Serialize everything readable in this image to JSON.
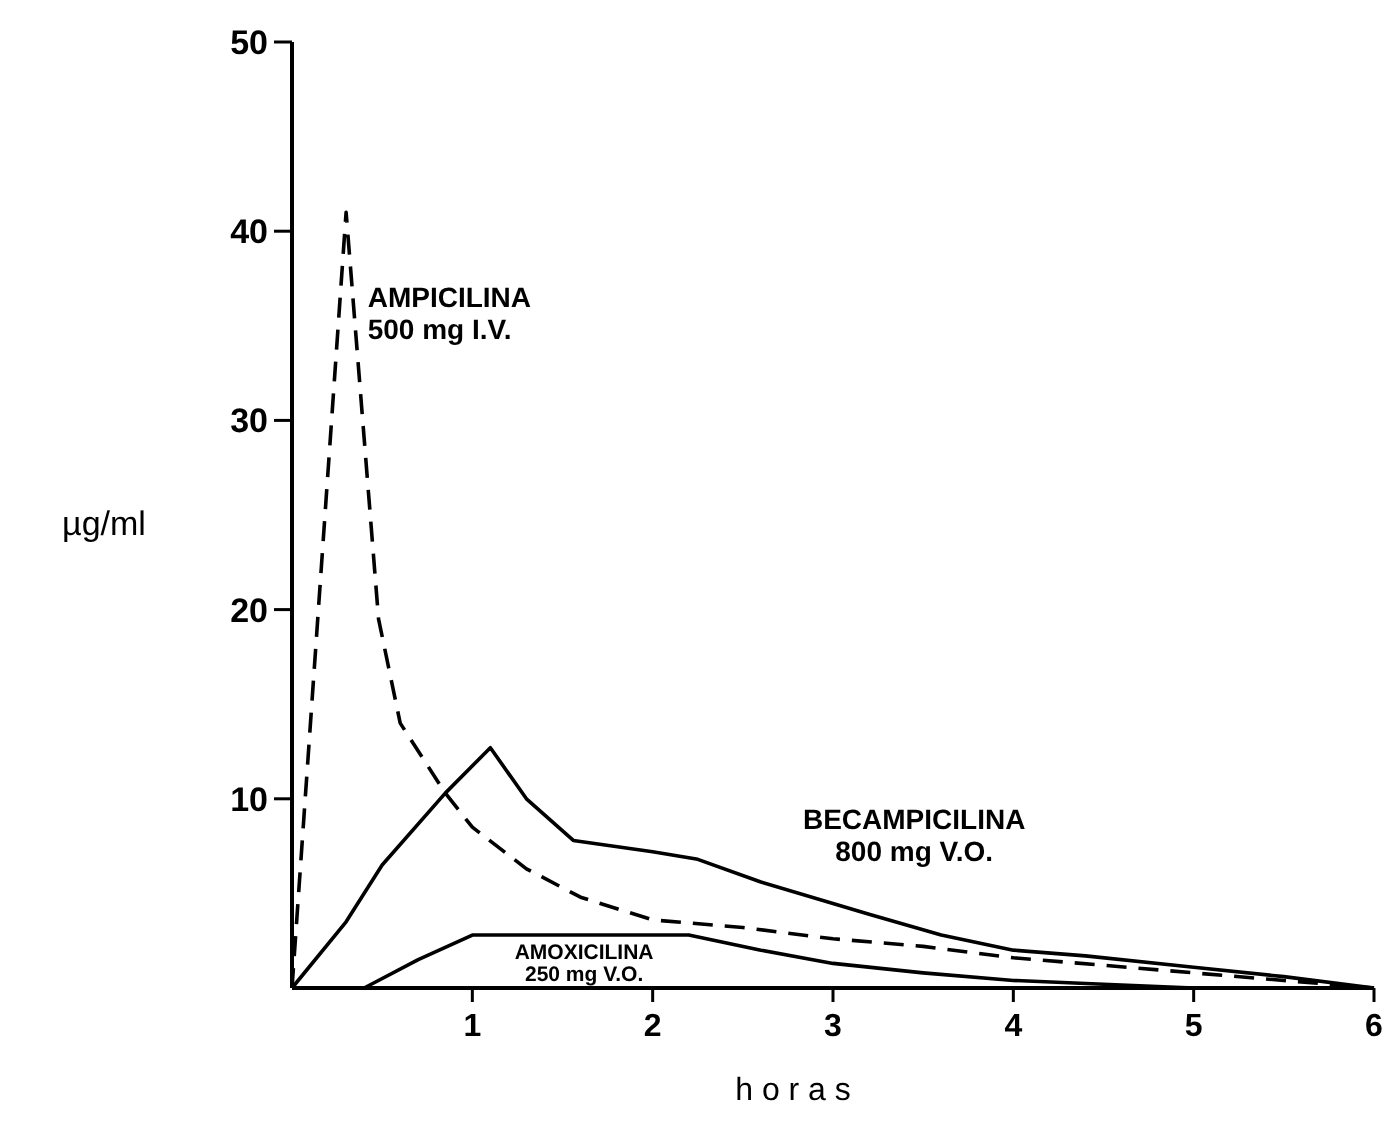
{
  "chart_data": {
    "type": "line",
    "xlabel": "h o r a s",
    "ylabel": "µg/ml",
    "xlim": [
      0,
      6
    ],
    "xticks": [
      1,
      2,
      3,
      4,
      5,
      6
    ],
    "ylim": [
      0,
      50
    ],
    "yticks": [
      10,
      20,
      30,
      40,
      50
    ],
    "series": [
      {
        "name": "AMPICILINA 500 mg I.V.",
        "color": "#000000",
        "line_style": "dashed",
        "x": [
          0,
          0.3,
          0.48,
          0.6,
          0.85,
          1.0,
          1.3,
          1.6,
          2.0,
          2.5,
          3,
          3.5,
          4,
          4.5,
          5,
          5.5,
          6
        ],
        "values": [
          0,
          41,
          19.5,
          14,
          10.3,
          8.5,
          6.3,
          4.8,
          3.6,
          3.2,
          2.6,
          2.2,
          1.6,
          1.2,
          0.8,
          0.4,
          0
        ]
      },
      {
        "name": "BECAMPICILINA 800 mg V.O.",
        "color": "#000000",
        "line_style": "solid",
        "x": [
          0,
          0.3,
          0.5,
          0.85,
          1.1,
          1.3,
          1.56,
          2.0,
          2.25,
          2.6,
          3.2,
          3.6,
          4.0,
          4.4,
          5,
          5.5,
          6
        ],
        "values": [
          0,
          3.5,
          6.5,
          10.3,
          12.7,
          10,
          7.8,
          7.2,
          6.8,
          5.6,
          3.9,
          2.8,
          2,
          1.7,
          1.1,
          0.6,
          0
        ]
      },
      {
        "name": "AMOXICILINA 250 mg V.O.",
        "color": "#000000",
        "line_style": "solid",
        "x": [
          0,
          0.4,
          0.7,
          1.0,
          1.5,
          2.2,
          2.6,
          3,
          3.5,
          4,
          4.5,
          5,
          6
        ],
        "values": [
          0,
          0,
          1.5,
          2.8,
          2.8,
          2.8,
          2,
          1.3,
          0.8,
          0.4,
          0.2,
          0,
          0
        ]
      }
    ]
  }
}
